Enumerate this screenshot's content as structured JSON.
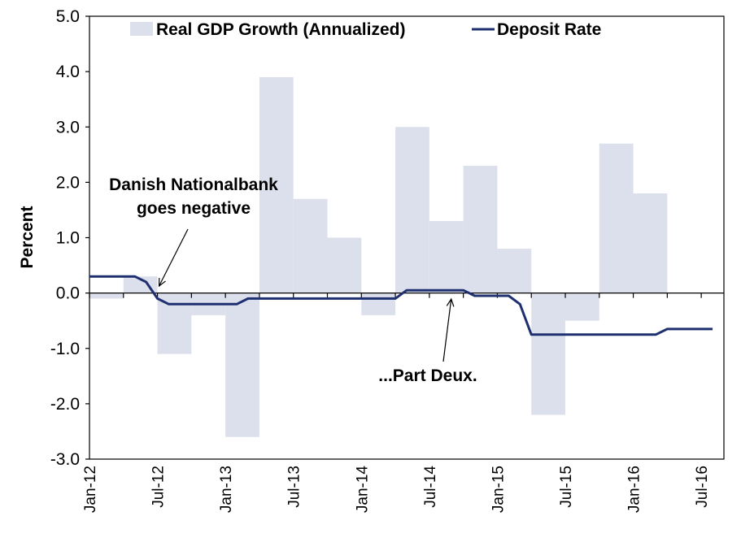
{
  "chart_data": {
    "type": "bar+line",
    "title": "",
    "ylabel": "Percent",
    "xlabel": "",
    "ylim": [
      -3.0,
      5.0
    ],
    "yticks": [
      "5.0",
      "4.0",
      "3.0",
      "2.0",
      "1.0",
      "0.0",
      "-1.0",
      "-2.0",
      "-3.0"
    ],
    "xticks": [
      "Jan-12",
      "Jul-12",
      "Jan-13",
      "Jul-13",
      "Jan-14",
      "Jul-14",
      "Jan-15",
      "Jul-15",
      "Jan-16",
      "Jul-16"
    ],
    "grid": false,
    "legend_position": "top",
    "series": [
      {
        "name": "Real GDP Growth (Annualized)",
        "type": "bar",
        "color": "#dcdfec",
        "quarters": [
          "2012-Q1",
          "2012-Q2",
          "2012-Q3",
          "2012-Q4",
          "2013-Q1",
          "2013-Q2",
          "2013-Q3",
          "2013-Q4",
          "2014-Q1",
          "2014-Q2",
          "2014-Q3",
          "2014-Q4",
          "2015-Q1",
          "2015-Q2",
          "2015-Q3",
          "2015-Q4",
          "2016-Q1",
          "2016-Q2"
        ],
        "values": [
          -0.1,
          0.3,
          -1.1,
          -0.4,
          -2.6,
          3.9,
          1.7,
          1.0,
          -0.4,
          3.0,
          1.3,
          2.3,
          0.8,
          -2.2,
          -0.5,
          2.7,
          1.8,
          0.0
        ]
      },
      {
        "name": "Deposit Rate",
        "type": "line",
        "color": "#1f3070",
        "x": [
          "2012-01",
          "2012-02",
          "2012-03",
          "2012-04",
          "2012-05",
          "2012-06",
          "2012-07",
          "2012-08",
          "2012-09",
          "2012-10",
          "2012-11",
          "2012-12",
          "2013-01",
          "2013-02",
          "2013-03",
          "2013-04",
          "2013-05",
          "2013-06",
          "2013-07",
          "2013-08",
          "2013-09",
          "2013-10",
          "2013-11",
          "2013-12",
          "2014-01",
          "2014-02",
          "2014-03",
          "2014-04",
          "2014-05",
          "2014-06",
          "2014-07",
          "2014-08",
          "2014-09",
          "2014-10",
          "2014-11",
          "2014-12",
          "2015-01",
          "2015-02",
          "2015-03",
          "2015-04",
          "2015-05",
          "2015-06",
          "2015-07",
          "2015-08",
          "2015-09",
          "2015-10",
          "2015-11",
          "2015-12",
          "2016-01",
          "2016-02",
          "2016-03",
          "2016-04",
          "2016-05",
          "2016-06",
          "2016-07",
          "2016-08"
        ],
        "values": [
          0.3,
          0.3,
          0.3,
          0.3,
          0.3,
          0.2,
          -0.1,
          -0.2,
          -0.2,
          -0.2,
          -0.2,
          -0.2,
          -0.2,
          -0.2,
          -0.1,
          -0.1,
          -0.1,
          -0.1,
          -0.1,
          -0.1,
          -0.1,
          -0.1,
          -0.1,
          -0.1,
          -0.1,
          -0.1,
          -0.1,
          -0.1,
          0.05,
          0.05,
          0.05,
          0.05,
          0.05,
          0.05,
          -0.05,
          -0.05,
          -0.05,
          -0.05,
          -0.2,
          -0.75,
          -0.75,
          -0.75,
          -0.75,
          -0.75,
          -0.75,
          -0.75,
          -0.75,
          -0.75,
          -0.75,
          -0.75,
          -0.75,
          -0.65,
          -0.65,
          -0.65,
          -0.65,
          -0.65
        ]
      }
    ],
    "annotations": [
      {
        "id": "danish",
        "lines": [
          "Danish Nationalbank",
          "goes negative"
        ],
        "points_to": "2012-07"
      },
      {
        "id": "deux",
        "lines": [
          "...Part Deux."
        ],
        "points_to": "2014-09"
      }
    ]
  }
}
